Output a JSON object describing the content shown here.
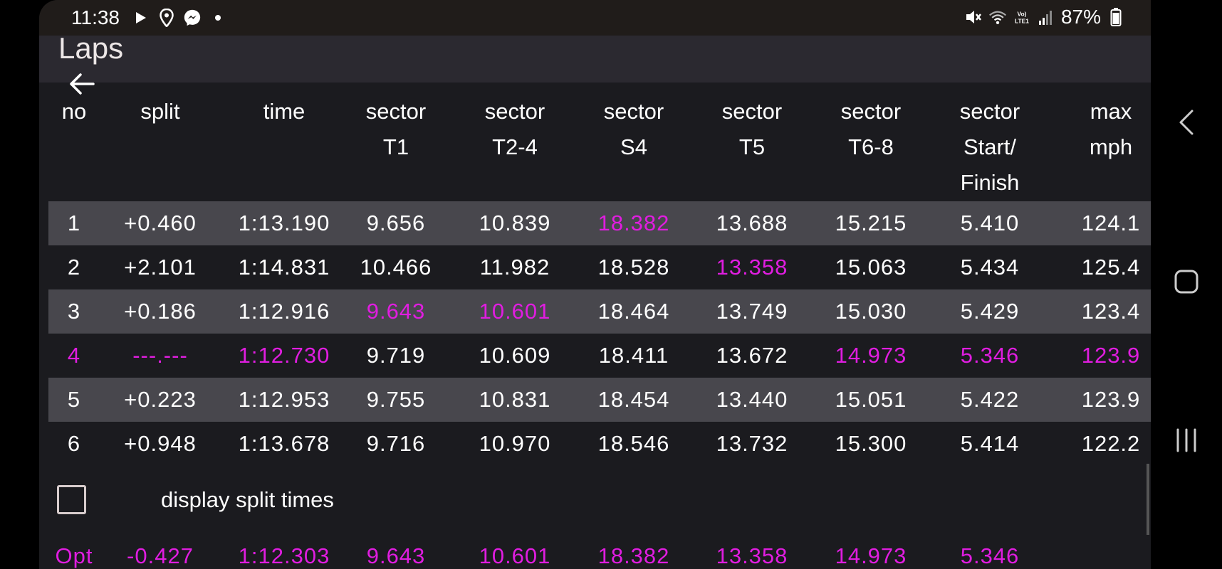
{
  "status_bar": {
    "time": "11:38",
    "battery_text": "87%",
    "icons_left": [
      "play-icon",
      "location-icon",
      "messenger-icon",
      "dot-icon"
    ],
    "icons_right": [
      "mute-icon",
      "wifi-icon",
      "volte-icon",
      "signal-icon",
      "battery-icon"
    ],
    "network_label": "Vo) LTE1"
  },
  "header": {
    "title": "Laps"
  },
  "table": {
    "columns": [
      {
        "label": "no"
      },
      {
        "label": "split"
      },
      {
        "label": "time"
      },
      {
        "label": "sector\nT1"
      },
      {
        "label": "sector\nT2-4"
      },
      {
        "label": "sector\nS4"
      },
      {
        "label": "sector\nT5"
      },
      {
        "label": "sector\nT6-8"
      },
      {
        "label": "sector\nStart/\nFinish"
      },
      {
        "label": "max\nmph"
      }
    ],
    "rows": [
      {
        "cells": [
          "1",
          "+0.460",
          "1:13.190",
          "9.656",
          "10.839",
          "18.382",
          "13.688",
          "15.215",
          "5.410",
          "124.1"
        ],
        "highlight": [
          5
        ]
      },
      {
        "cells": [
          "2",
          "+2.101",
          "1:14.831",
          "10.466",
          "11.982",
          "18.528",
          "13.358",
          "15.063",
          "5.434",
          "125.4"
        ],
        "highlight": [
          6
        ]
      },
      {
        "cells": [
          "3",
          "+0.186",
          "1:12.916",
          "9.643",
          "10.601",
          "18.464",
          "13.749",
          "15.030",
          "5.429",
          "123.4"
        ],
        "highlight": [
          3,
          4
        ]
      },
      {
        "cells": [
          "4",
          "---.---",
          "1:12.730",
          "9.719",
          "10.609",
          "18.411",
          "13.672",
          "14.973",
          "5.346",
          "123.9"
        ],
        "highlight": [
          0,
          1,
          2,
          7,
          8,
          9
        ]
      },
      {
        "cells": [
          "5",
          "+0.223",
          "1:12.953",
          "9.755",
          "10.831",
          "18.454",
          "13.440",
          "15.051",
          "5.422",
          "123.9"
        ],
        "highlight": []
      },
      {
        "cells": [
          "6",
          "+0.948",
          "1:13.678",
          "9.716",
          "10.970",
          "18.546",
          "13.732",
          "15.300",
          "5.414",
          "122.2"
        ],
        "highlight": []
      }
    ]
  },
  "options": {
    "display_split_label": "display split times",
    "display_split_checked": false
  },
  "optimal": {
    "cells": [
      "Opt",
      "-0.427",
      "1:12.303",
      "9.643",
      "10.601",
      "18.382",
      "13.358",
      "14.973",
      "5.346",
      ""
    ]
  },
  "colors": {
    "highlight": "#e01de0",
    "row_alt": "#48474d",
    "background": "#1b1b1f"
  },
  "nav_bar": {
    "buttons": [
      "back-nav-icon",
      "home-nav-icon",
      "recents-nav-icon"
    ]
  }
}
